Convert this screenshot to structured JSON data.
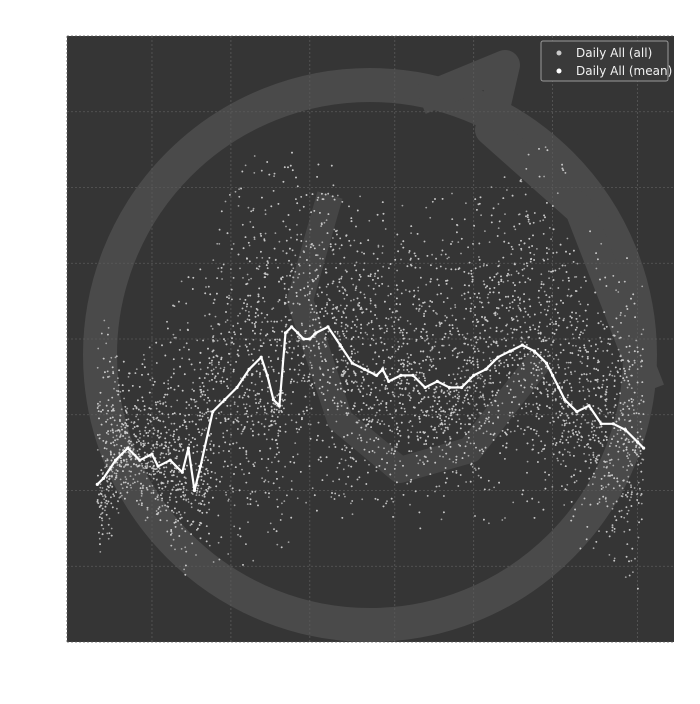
{
  "chart_data": {
    "type": "scatter",
    "title": "",
    "xlabel": "",
    "ylabel": "",
    "grid": true,
    "legend_position": "top-right",
    "colors": {
      "plot_background": "#353535",
      "grid": "#5a5a5a",
      "points": "#c9c9c9",
      "mean_line": "#ffffff",
      "watermark": "#4a4a4a"
    },
    "xlim": [
      0,
      100
    ],
    "ylim": [
      0,
      100
    ],
    "series": [
      {
        "name": "Daily All (all)",
        "kind": "scatter",
        "total_points": 9000,
        "density_profile": [
          {
            "x": 5,
            "y_low": 10,
            "y_high": 56
          },
          {
            "x": 10,
            "y_low": 25,
            "y_high": 45
          },
          {
            "x": 15,
            "y_low": 18,
            "y_high": 50
          },
          {
            "x": 20,
            "y_low": 12,
            "y_high": 63
          },
          {
            "x": 25,
            "y_low": 15,
            "y_high": 72
          },
          {
            "x": 30,
            "y_low": 12,
            "y_high": 82
          },
          {
            "x": 35,
            "y_low": 14,
            "y_high": 78
          },
          {
            "x": 40,
            "y_low": 22,
            "y_high": 80
          },
          {
            "x": 45,
            "y_low": 22,
            "y_high": 76
          },
          {
            "x": 50,
            "y_low": 22,
            "y_high": 75
          },
          {
            "x": 55,
            "y_low": 20,
            "y_high": 74
          },
          {
            "x": 60,
            "y_low": 22,
            "y_high": 74
          },
          {
            "x": 65,
            "y_low": 24,
            "y_high": 77
          },
          {
            "x": 70,
            "y_low": 21,
            "y_high": 76
          },
          {
            "x": 75,
            "y_low": 23,
            "y_high": 80
          },
          {
            "x": 80,
            "y_low": 24,
            "y_high": 84
          },
          {
            "x": 85,
            "y_low": 17,
            "y_high": 70
          },
          {
            "x": 90,
            "y_low": 12,
            "y_high": 66
          },
          {
            "x": 95,
            "y_low": 8,
            "y_high": 62
          }
        ]
      },
      {
        "name": "Daily All (mean)",
        "kind": "line",
        "x": [
          5,
          6,
          8,
          10,
          12,
          14,
          15,
          17,
          19,
          20,
          21,
          22,
          24,
          26,
          28,
          30,
          32,
          33,
          34,
          35,
          36,
          37,
          38,
          39,
          40,
          41,
          43,
          45,
          47,
          49,
          51,
          52,
          53,
          55,
          57,
          59,
          61,
          63,
          65,
          67,
          69,
          71,
          73,
          75,
          77,
          79,
          80,
          81,
          82,
          84,
          86,
          88,
          90,
          92,
          94,
          95
        ],
        "y": [
          26,
          27,
          30,
          32,
          30,
          31,
          29,
          30,
          28,
          32,
          25,
          29,
          38,
          40,
          42,
          45,
          47,
          44,
          40,
          39,
          51,
          52,
          51,
          50,
          50,
          51,
          52,
          49,
          46,
          45,
          44,
          45,
          43,
          44,
          44,
          42,
          43,
          42,
          42,
          44,
          45,
          47,
          48,
          49,
          48,
          46,
          44,
          42,
          40,
          38,
          39,
          36,
          36,
          35,
          33,
          32
        ]
      }
    ]
  },
  "legend": {
    "items": [
      {
        "label": "Daily All (all)"
      },
      {
        "label": "Daily All (mean)"
      }
    ]
  }
}
